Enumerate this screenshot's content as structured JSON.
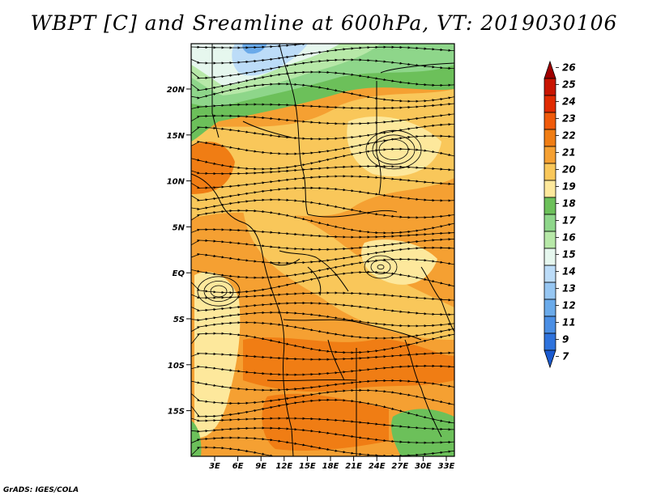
{
  "title": "WBPT [C] and Sreamline at 600hPa, VT: 2019030106",
  "credit": "GrADS: IGES/COLA",
  "map": {
    "lat_labels": [
      "20N",
      "15N",
      "10N",
      "5N",
      "EQ",
      "5S",
      "10S",
      "15S"
    ],
    "lon_labels": [
      "3E",
      "6E",
      "9E",
      "12E",
      "15E",
      "18E",
      "21E",
      "24E",
      "27E",
      "30E",
      "33E"
    ],
    "field": "WBPT",
    "level": "600hPa",
    "overlay": "streamlines"
  },
  "colorbar": {
    "labels": [
      "26",
      "25",
      "24",
      "23",
      "22",
      "21",
      "20",
      "19",
      "18",
      "17",
      "16",
      "15",
      "14",
      "13",
      "12",
      "11",
      "9",
      "7"
    ],
    "colors": [
      "#a00000",
      "#c81400",
      "#e02a00",
      "#f05a0a",
      "#f07d14",
      "#f5a032",
      "#f9c75a",
      "#fde89c",
      "#6cc05a",
      "#8ed68a",
      "#b7e8a8",
      "#e6f7ee",
      "#bcdcf8",
      "#96c6f2",
      "#6aaaea",
      "#4a8ee4",
      "#2e72dc",
      "#1a5ad0"
    ]
  }
}
